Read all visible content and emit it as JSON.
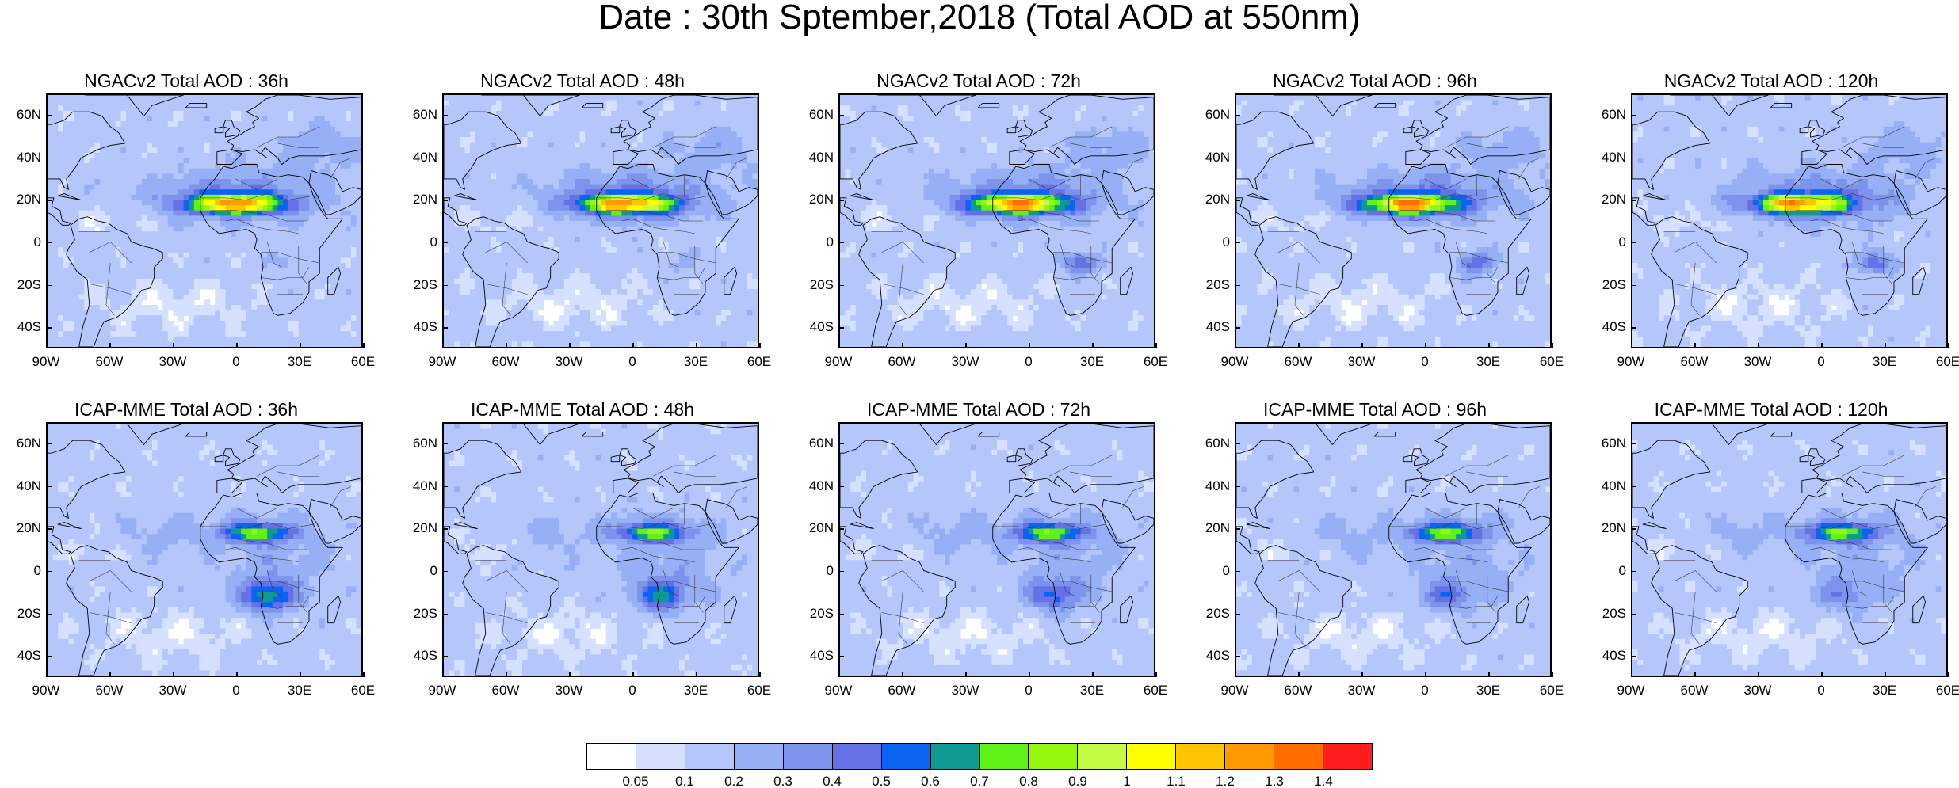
{
  "title": "Date : 30th Sptember,2018 (Total AOD at 550nm)",
  "panels": [
    {
      "title": "NGACv2 Total AOD : 36h",
      "model": "NGACv2",
      "lead": "36h",
      "row": 0,
      "col": 0,
      "seed": 11
    },
    {
      "title": "NGACv2 Total AOD : 48h",
      "model": "NGACv2",
      "lead": "48h",
      "row": 0,
      "col": 1,
      "seed": 23
    },
    {
      "title": "NGACv2 Total AOD : 72h",
      "model": "NGACv2",
      "lead": "72h",
      "row": 0,
      "col": 2,
      "seed": 37
    },
    {
      "title": "NGACv2 Total AOD : 96h",
      "model": "NGACv2",
      "lead": "96h",
      "row": 0,
      "col": 3,
      "seed": 41
    },
    {
      "title": "NGACv2 Total AOD : 120h",
      "model": "NGACv2",
      "lead": "120h",
      "row": 0,
      "col": 4,
      "seed": 53
    },
    {
      "title": "ICAP-MME Total AOD : 36h",
      "model": "ICAP-MME",
      "lead": "36h",
      "row": 1,
      "col": 0,
      "seed": 61
    },
    {
      "title": "ICAP-MME Total AOD : 48h",
      "model": "ICAP-MME",
      "lead": "48h",
      "row": 1,
      "col": 1,
      "seed": 71
    },
    {
      "title": "ICAP-MME Total AOD : 72h",
      "model": "ICAP-MME",
      "lead": "72h",
      "row": 1,
      "col": 2,
      "seed": 83
    },
    {
      "title": "ICAP-MME Total AOD : 96h",
      "model": "ICAP-MME",
      "lead": "96h",
      "row": 1,
      "col": 3,
      "seed": 97
    },
    {
      "title": "ICAP-MME Total AOD : 120h",
      "model": "ICAP-MME",
      "lead": "120h",
      "row": 1,
      "col": 4,
      "seed": 101
    }
  ],
  "map": {
    "lon_range": [
      -90,
      60
    ],
    "lat_range": [
      -50,
      70
    ],
    "lon_ticks": [
      {
        "value": -90,
        "label": "90W"
      },
      {
        "value": -60,
        "label": "60W"
      },
      {
        "value": -30,
        "label": "30W"
      },
      {
        "value": 0,
        "label": "0"
      },
      {
        "value": 30,
        "label": "30E"
      },
      {
        "value": 60,
        "label": "60E"
      }
    ],
    "lat_ticks": [
      {
        "value": 60,
        "label": "60N"
      },
      {
        "value": 40,
        "label": "40N"
      },
      {
        "value": 20,
        "label": "20N"
      },
      {
        "value": 0,
        "label": "0"
      },
      {
        "value": -20,
        "label": "20S"
      },
      {
        "value": -40,
        "label": "40S"
      }
    ]
  },
  "colorbar": {
    "colors": [
      "#ffffff",
      "#d6e0ff",
      "#b4c6fa",
      "#96aff5",
      "#7d93ec",
      "#6771e6",
      "#0c63f2",
      "#0e9a93",
      "#5ef219",
      "#95f70d",
      "#c3fb44",
      "#ffff00",
      "#ffc400",
      "#ff9a00",
      "#ff6d00",
      "#ff1e1e"
    ],
    "labels": [
      "0.05",
      "0.1",
      "0.2",
      "0.3",
      "0.4",
      "0.5",
      "0.6",
      "0.7",
      "0.8",
      "0.9",
      "1",
      "1.1",
      "1.2",
      "1.3",
      "1.4"
    ]
  }
}
